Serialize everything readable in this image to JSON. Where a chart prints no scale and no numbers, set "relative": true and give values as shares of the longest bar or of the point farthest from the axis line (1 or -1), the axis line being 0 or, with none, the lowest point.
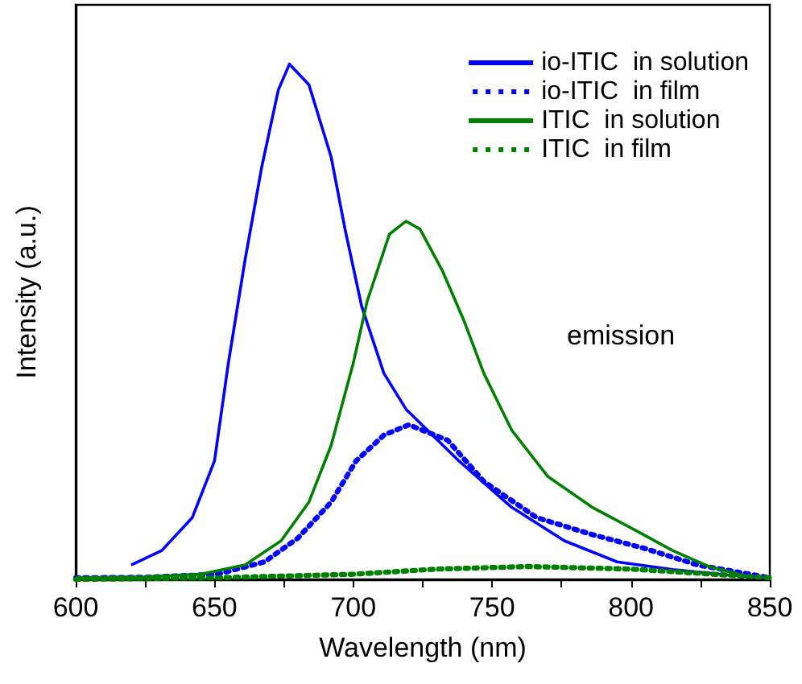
{
  "chart_data": {
    "type": "line",
    "xlabel": "Wavelength (nm)",
    "ylabel": "Intensity (a.u.)",
    "relative": true,
    "xlim": [
      600,
      850
    ],
    "xticks": [
      600,
      {
        "value": 625,
        "label": null
      },
      650,
      {
        "value": 675,
        "label": null
      },
      700,
      {
        "value": 725,
        "label": null
      },
      750,
      {
        "value": 775,
        "label": null
      },
      800,
      {
        "value": 825,
        "label": null
      },
      850
    ],
    "grid": false,
    "legend": "top right",
    "marker": "none",
    "annotations": [
      "emission"
    ],
    "series": [
      {
        "name": "io-ITIC  in solution",
        "color": "#0000ff",
        "line_style": "solid",
        "x": [
          620,
          631,
          642,
          650,
          655,
          661,
          667,
          673,
          677,
          684,
          692,
          697,
          703,
          711,
          719,
          738,
          757,
          776,
          795,
          815,
          834,
          849
        ],
        "values": [
          0.028,
          0.056,
          0.12,
          0.23,
          0.42,
          0.62,
          0.8,
          0.95,
          1.0,
          0.96,
          0.82,
          0.68,
          0.53,
          0.4,
          0.33,
          0.23,
          0.14,
          0.075,
          0.034,
          0.019,
          0.009,
          0.003
        ]
      },
      {
        "name": "io-ITIC  in film",
        "color": "#0000ff",
        "line_style": "dotted",
        "x": [
          600,
          625,
          651,
          668,
          680,
          692,
          701,
          711,
          720,
          734,
          747,
          766,
          786,
          805,
          824,
          844,
          850
        ],
        "values": [
          0.003,
          0.004,
          0.01,
          0.034,
          0.08,
          0.15,
          0.23,
          0.28,
          0.3,
          0.27,
          0.19,
          0.12,
          0.087,
          0.06,
          0.028,
          0.009,
          0.003
        ]
      },
      {
        "name": "ITIC  in solution",
        "color": "#008000",
        "line_style": "solid",
        "x": [
          600,
          625,
          645,
          661,
          674,
          684,
          692,
          700,
          705,
          713,
          719,
          724,
          732,
          740,
          747,
          757,
          770,
          786,
          801,
          815,
          828,
          844
        ],
        "values": [
          0.003,
          0.005,
          0.01,
          0.028,
          0.075,
          0.15,
          0.26,
          0.42,
          0.54,
          0.67,
          0.695,
          0.68,
          0.6,
          0.5,
          0.4,
          0.29,
          0.2,
          0.14,
          0.097,
          0.056,
          0.025,
          0.003
        ]
      },
      {
        "name": "ITIC  in film",
        "color": "#008000",
        "line_style": "dotted",
        "x": [
          600,
          650,
          700,
          730,
          763,
          800,
          830,
          850
        ],
        "values": [
          0,
          0.003,
          0.01,
          0.02,
          0.025,
          0.02,
          0.01,
          0.003
        ]
      }
    ]
  }
}
